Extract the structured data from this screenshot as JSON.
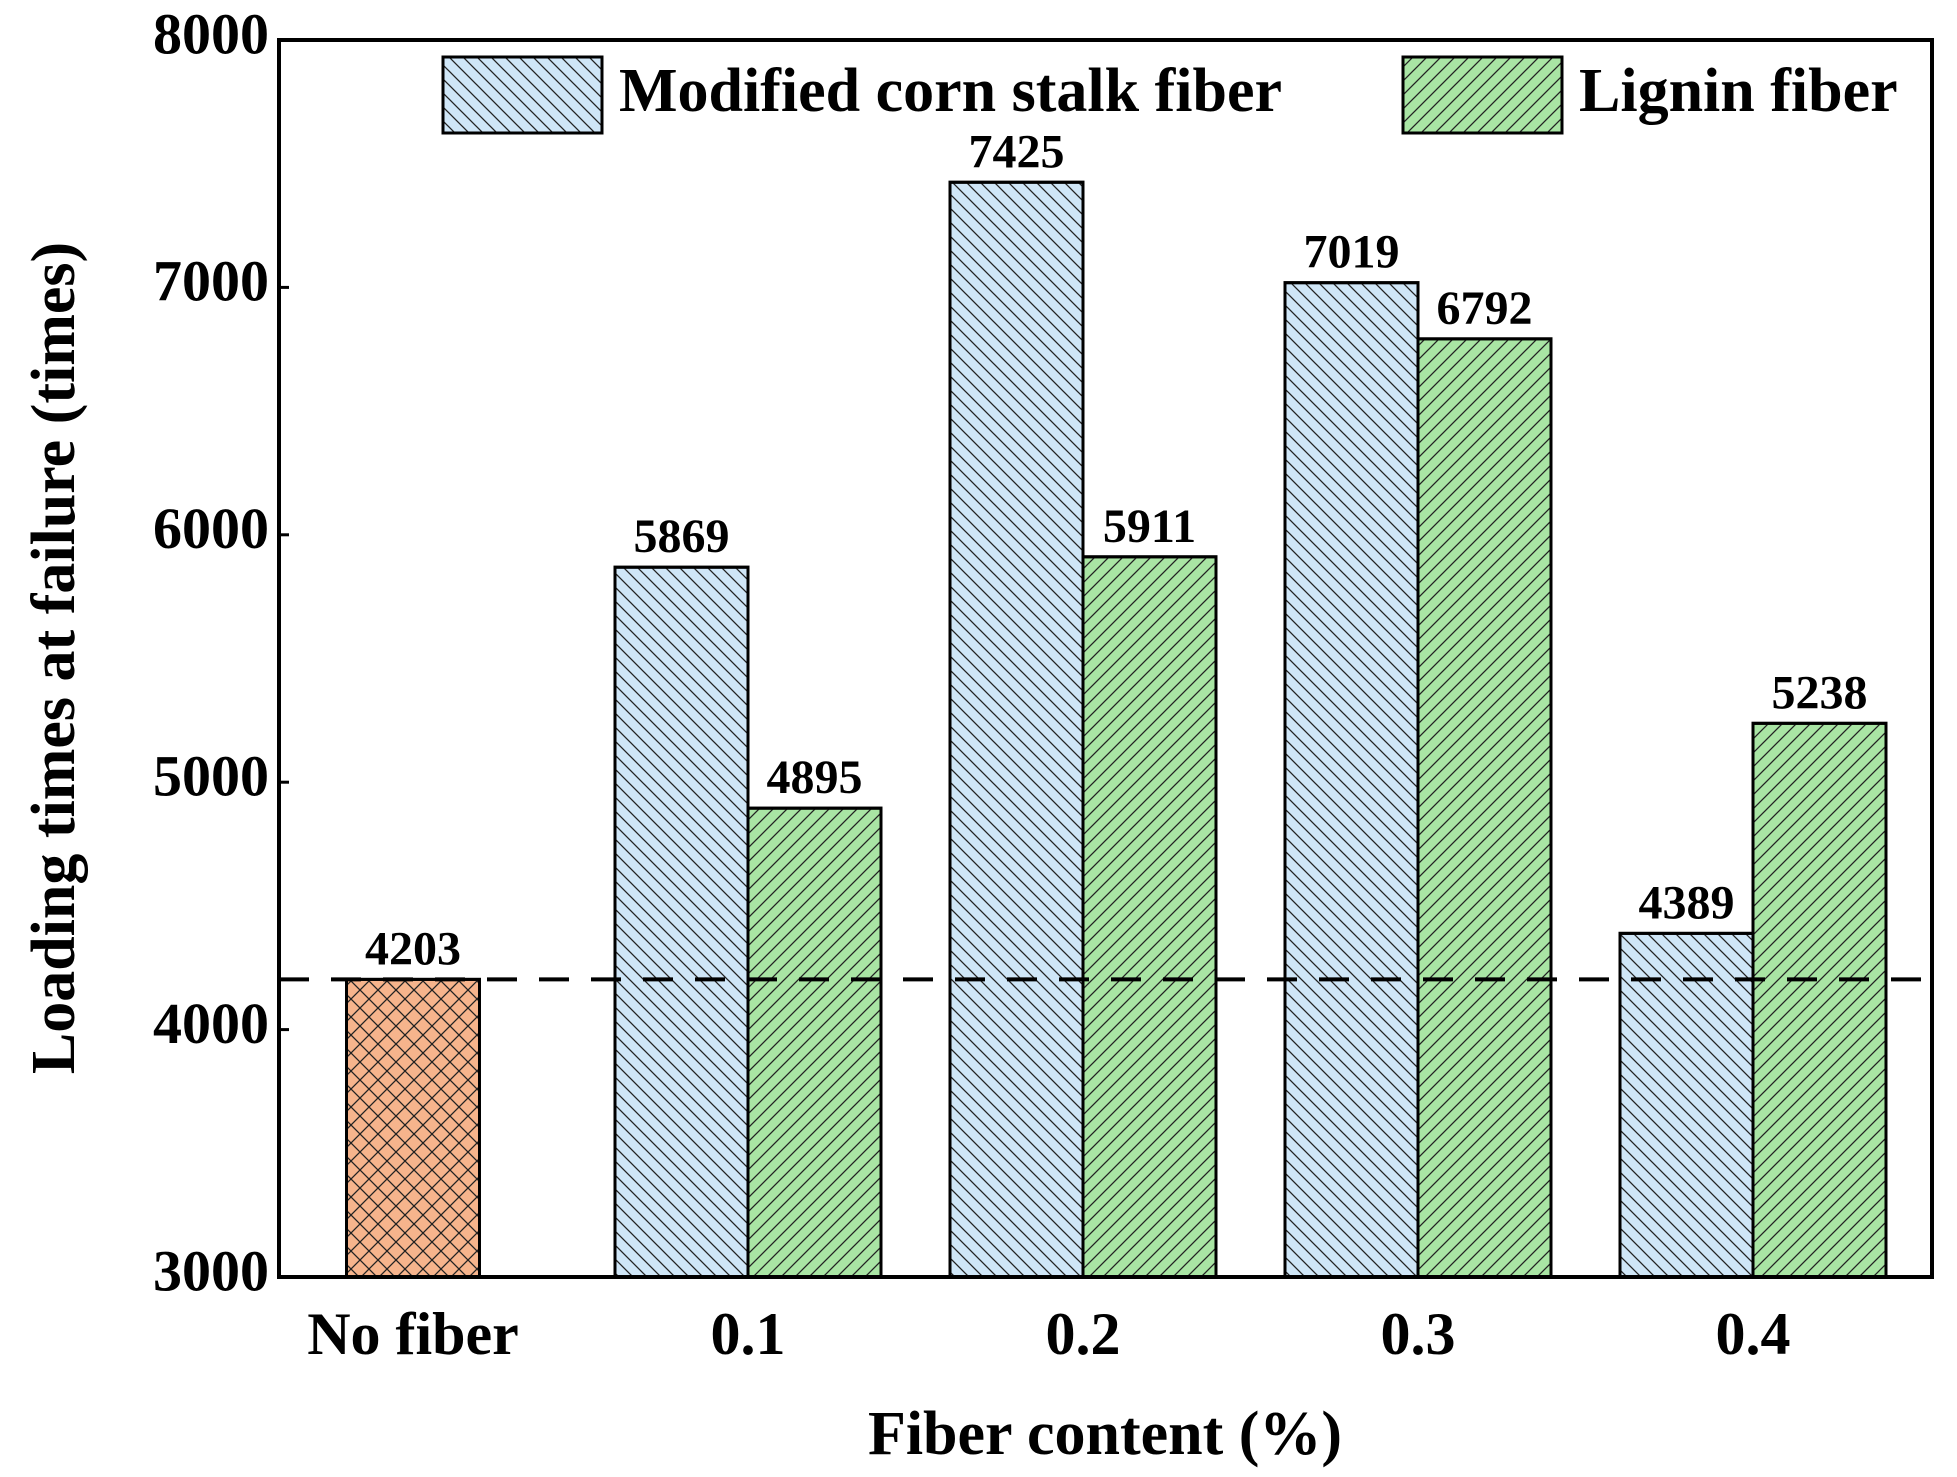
{
  "chart_data": {
    "type": "bar",
    "x_label": "Fiber content (%)",
    "y_label": "Loading times at failure (times)",
    "categories": [
      "No fiber",
      "0.1",
      "0.2",
      "0.3",
      "0.4"
    ],
    "baseline_bar": {
      "value": 4203,
      "color": "#f6b48c"
    },
    "series": [
      {
        "name": "Modified corn stalk fiber",
        "color": "#cfe6f7",
        "values": [
          null,
          5869,
          7425,
          7019,
          4389
        ]
      },
      {
        "name": "Lignin fiber",
        "color": "#a9e5a4",
        "values": [
          null,
          4895,
          5911,
          6792,
          5238
        ]
      }
    ],
    "ylim": [
      3000,
      8000
    ],
    "yticks": [
      3000,
      4000,
      5000,
      6000,
      7000,
      8000
    ],
    "grid": false,
    "dashed_baseline": true,
    "legend": "top"
  }
}
